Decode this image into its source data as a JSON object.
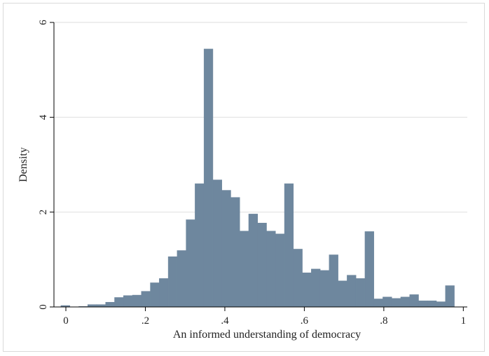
{
  "chart_data": {
    "type": "bar",
    "title": "",
    "xlabel": "An informed understanding of democracy",
    "ylabel": "Density",
    "xlim": [
      -0.03,
      1.01
    ],
    "ylim": [
      0,
      6
    ],
    "x_ticks": [
      0,
      0.2,
      0.4,
      0.6,
      0.8,
      1
    ],
    "x_tick_labels": [
      "0",
      ".2",
      ".4",
      ".6",
      ".8",
      "1"
    ],
    "y_ticks": [
      0,
      2,
      4,
      6
    ],
    "y_tick_labels": [
      "0",
      "2",
      "4",
      "6"
    ],
    "grid": "horizontal",
    "bar_color": "#6e879e",
    "bin_width": 0.0225,
    "bin_start": -0.0125,
    "values": [
      0.03,
      0.0,
      0.01,
      0.05,
      0.05,
      0.1,
      0.2,
      0.24,
      0.25,
      0.33,
      0.51,
      0.6,
      1.06,
      1.19,
      1.84,
      2.6,
      5.44,
      2.68,
      2.46,
      2.31,
      1.6,
      1.96,
      1.77,
      1.6,
      1.54,
      2.6,
      1.22,
      0.72,
      0.8,
      0.77,
      1.1,
      0.55,
      0.67,
      0.6,
      1.59,
      0.17,
      0.21,
      0.18,
      0.21,
      0.26,
      0.13,
      0.13,
      0.11,
      0.45
    ]
  }
}
